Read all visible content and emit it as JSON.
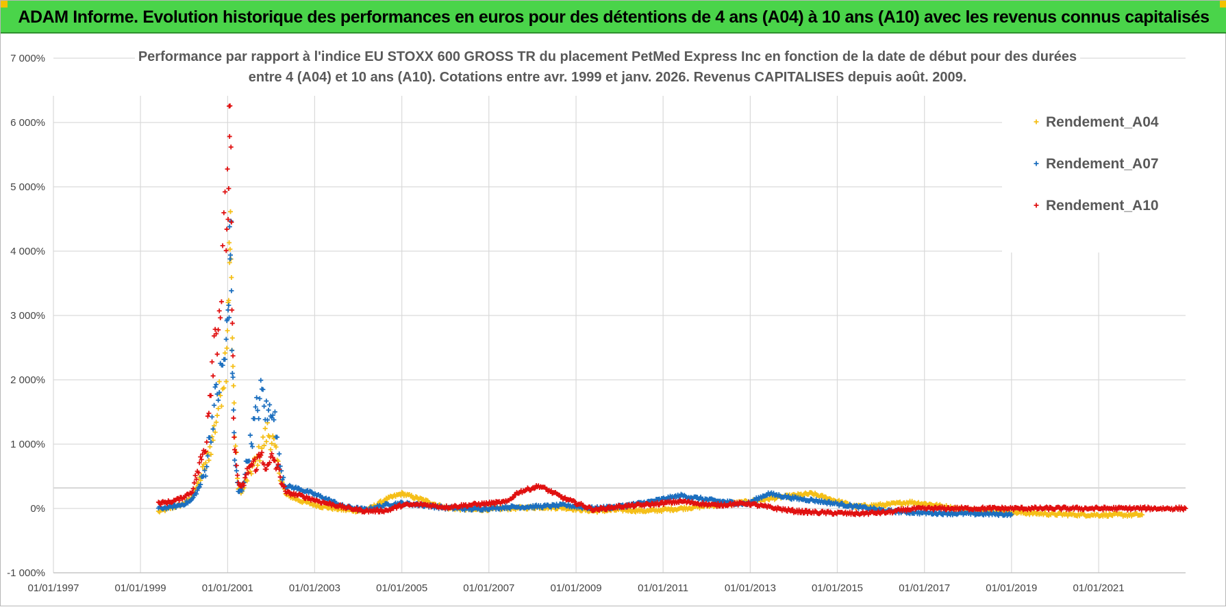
{
  "banner": {
    "title": "ADAM Informe. Evolution historique des performances en euros pour des détentions de 4 ans (A04) à 10 ans (A10) avec les revenus connus capitalisés"
  },
  "colors": {
    "banner_bg": "#4ad44a",
    "corner": "#f2c200",
    "A04": "#f5bf18",
    "A07": "#1c6fbf",
    "A10": "#e01010",
    "grid": "#d9d9d9"
  },
  "chart_data": {
    "type": "scatter",
    "title_lines": [
      "Performance par rapport à l'indice EU STOXX 600 GROSS TR  du placement PetMed Express Inc en fonction de la date de début pour des durées",
      "entre 4 (A04) et 10 ans (A10). Cotations entre avr. 1999 et janv. 2026. Revenus CAPITALISES depuis août. 2009."
    ],
    "xlabel": "",
    "ylabel": "",
    "x_range": [
      "1997-01-01",
      "2022-12-31"
    ],
    "x_ticks": [
      "01/01/1997",
      "01/01/1999",
      "01/01/2001",
      "01/01/2003",
      "01/01/2005",
      "01/01/2007",
      "01/01/2009",
      "01/01/2011",
      "01/01/2013",
      "01/01/2015",
      "01/01/2017",
      "01/01/2019",
      "01/01/2021"
    ],
    "x_tick_dates": [
      "1997-01-01",
      "1999-01-01",
      "2001-01-01",
      "2003-01-01",
      "2005-01-01",
      "2007-01-01",
      "2009-01-01",
      "2011-01-01",
      "2013-01-01",
      "2015-01-01",
      "2017-01-01",
      "2019-01-01",
      "2021-01-01"
    ],
    "ylim": [
      -1000,
      7000
    ],
    "y_ticks": [
      -1000,
      0,
      1000,
      2000,
      3000,
      4000,
      5000,
      6000,
      7000
    ],
    "y_tick_labels": [
      "-1 000%",
      "0%",
      "1 000%",
      "2 000%",
      "3 000%",
      "4 000%",
      "5 000%",
      "6 000%",
      "7 000%"
    ],
    "grid": true,
    "legend_position": "top-right",
    "series": [
      {
        "name": "Rendement_A04",
        "color_key": "A04",
        "points": [
          [
            "1999-06-01",
            -50
          ],
          [
            "1999-09-01",
            0
          ],
          [
            "1999-12-01",
            50
          ],
          [
            "2000-03-01",
            150
          ],
          [
            "2000-05-01",
            400
          ],
          [
            "2000-07-01",
            700
          ],
          [
            "2000-09-01",
            1100
          ],
          [
            "2000-11-01",
            1800
          ],
          [
            "2000-12-20",
            2400
          ],
          [
            "2001-01-10",
            3600
          ],
          [
            "2001-01-25",
            4100
          ],
          [
            "2001-02-10",
            2600
          ],
          [
            "2001-03-01",
            1200
          ],
          [
            "2001-04-01",
            300
          ],
          [
            "2001-05-01",
            250
          ],
          [
            "2001-07-01",
            550
          ],
          [
            "2001-09-01",
            750
          ],
          [
            "2001-10-15",
            950
          ],
          [
            "2001-12-01",
            1200
          ],
          [
            "2002-01-15",
            1050
          ],
          [
            "2002-03-01",
            650
          ],
          [
            "2002-05-01",
            220
          ],
          [
            "2002-09-01",
            120
          ],
          [
            "2003-03-01",
            30
          ],
          [
            "2003-09-01",
            -20
          ],
          [
            "2004-03-01",
            -40
          ],
          [
            "2004-09-01",
            150
          ],
          [
            "2005-01-01",
            230
          ],
          [
            "2005-07-01",
            130
          ],
          [
            "2006-01-01",
            10
          ],
          [
            "2006-09-01",
            -20
          ],
          [
            "2007-06-01",
            0
          ],
          [
            "2008-03-01",
            20
          ],
          [
            "2008-10-01",
            10
          ],
          [
            "2009-06-01",
            -40
          ],
          [
            "2010-01-01",
            -20
          ],
          [
            "2010-09-01",
            -40
          ],
          [
            "2011-06-01",
            0
          ],
          [
            "2012-03-01",
            50
          ],
          [
            "2012-12-01",
            100
          ],
          [
            "2013-06-01",
            150
          ],
          [
            "2014-01-01",
            200
          ],
          [
            "2014-06-01",
            230
          ],
          [
            "2014-12-01",
            130
          ],
          [
            "2015-06-01",
            30
          ],
          [
            "2016-03-01",
            60
          ],
          [
            "2016-09-01",
            100
          ],
          [
            "2017-03-01",
            60
          ],
          [
            "2017-12-01",
            -20
          ],
          [
            "2019-01-01",
            -60
          ],
          [
            "2020-01-01",
            -90
          ],
          [
            "2021-01-01",
            -100
          ],
          [
            "2022-01-01",
            -100
          ]
        ]
      },
      {
        "name": "Rendement_A07",
        "color_key": "A07",
        "points": [
          [
            "1999-06-01",
            0
          ],
          [
            "1999-09-01",
            20
          ],
          [
            "1999-12-01",
            50
          ],
          [
            "2000-03-01",
            120
          ],
          [
            "2000-05-01",
            300
          ],
          [
            "2000-07-01",
            600
          ],
          [
            "2000-09-01",
            1500
          ],
          [
            "2000-11-01",
            2000
          ],
          [
            "2000-12-20",
            2500
          ],
          [
            "2001-01-10",
            3200
          ],
          [
            "2001-01-25",
            4400
          ],
          [
            "2001-02-10",
            2200
          ],
          [
            "2001-03-01",
            800
          ],
          [
            "2001-04-01",
            250
          ],
          [
            "2001-05-01",
            300
          ],
          [
            "2001-07-01",
            900
          ],
          [
            "2001-09-01",
            1500
          ],
          [
            "2001-10-15",
            1800
          ],
          [
            "2001-12-01",
            1400
          ],
          [
            "2002-01-15",
            1700
          ],
          [
            "2002-03-01",
            800
          ],
          [
            "2002-05-01",
            350
          ],
          [
            "2002-09-01",
            300
          ],
          [
            "2003-03-01",
            180
          ],
          [
            "2003-09-01",
            30
          ],
          [
            "2004-03-01",
            -20
          ],
          [
            "2004-09-01",
            60
          ],
          [
            "2005-01-01",
            80
          ],
          [
            "2005-07-01",
            50
          ],
          [
            "2006-01-01",
            10
          ],
          [
            "2006-09-01",
            -10
          ],
          [
            "2007-06-01",
            20
          ],
          [
            "2008-03-01",
            30
          ],
          [
            "2008-10-01",
            50
          ],
          [
            "2009-06-01",
            0
          ],
          [
            "2010-01-01",
            30
          ],
          [
            "2010-09-01",
            100
          ],
          [
            "2011-06-01",
            200
          ],
          [
            "2012-03-01",
            120
          ],
          [
            "2012-12-01",
            70
          ],
          [
            "2013-06-01",
            230
          ],
          [
            "2014-01-01",
            160
          ],
          [
            "2014-06-01",
            130
          ],
          [
            "2014-12-01",
            80
          ],
          [
            "2015-06-01",
            30
          ],
          [
            "2016-03-01",
            -40
          ],
          [
            "2016-09-01",
            -60
          ],
          [
            "2017-03-01",
            -70
          ],
          [
            "2017-12-01",
            -80
          ],
          [
            "2019-01-01",
            -90
          ]
        ]
      },
      {
        "name": "Rendement_A10",
        "color_key": "A10",
        "points": [
          [
            "1999-06-01",
            80
          ],
          [
            "1999-09-01",
            100
          ],
          [
            "1999-12-01",
            150
          ],
          [
            "2000-03-01",
            250
          ],
          [
            "2000-05-01",
            600
          ],
          [
            "2000-07-01",
            1000
          ],
          [
            "2000-09-01",
            2500
          ],
          [
            "2000-11-01",
            3200
          ],
          [
            "2000-12-20",
            4500
          ],
          [
            "2001-01-10",
            5200
          ],
          [
            "2001-01-25",
            6000
          ],
          [
            "2001-02-10",
            2500
          ],
          [
            "2001-03-01",
            900
          ],
          [
            "2001-04-01",
            400
          ],
          [
            "2001-05-01",
            300
          ],
          [
            "2001-07-01",
            650
          ],
          [
            "2001-09-01",
            700
          ],
          [
            "2001-10-15",
            850
          ],
          [
            "2001-12-01",
            600
          ],
          [
            "2002-01-15",
            800
          ],
          [
            "2002-03-01",
            600
          ],
          [
            "2002-05-01",
            250
          ],
          [
            "2002-09-01",
            200
          ],
          [
            "2003-03-01",
            100
          ],
          [
            "2003-09-01",
            20
          ],
          [
            "2004-03-01",
            -40
          ],
          [
            "2004-09-01",
            -30
          ],
          [
            "2005-01-01",
            50
          ],
          [
            "2005-07-01",
            60
          ],
          [
            "2006-01-01",
            20
          ],
          [
            "2006-09-01",
            60
          ],
          [
            "2007-06-01",
            100
          ],
          [
            "2007-09-01",
            250
          ],
          [
            "2008-03-01",
            350
          ],
          [
            "2008-10-01",
            150
          ],
          [
            "2009-06-01",
            -20
          ],
          [
            "2010-01-01",
            30
          ],
          [
            "2010-09-01",
            60
          ],
          [
            "2011-06-01",
            110
          ],
          [
            "2012-03-01",
            50
          ],
          [
            "2012-12-01",
            80
          ],
          [
            "2013-06-01",
            20
          ],
          [
            "2014-01-01",
            -40
          ],
          [
            "2014-06-01",
            -60
          ],
          [
            "2014-12-01",
            -70
          ],
          [
            "2015-06-01",
            -80
          ],
          [
            "2016-03-01",
            -60
          ],
          [
            "2016-09-01",
            -10
          ],
          [
            "2017-03-01",
            0
          ],
          [
            "2018-01-01",
            0
          ],
          [
            "2019-01-01",
            0
          ],
          [
            "2020-01-01",
            0
          ],
          [
            "2021-01-01",
            0
          ],
          [
            "2022-12-31",
            0
          ]
        ]
      }
    ]
  }
}
